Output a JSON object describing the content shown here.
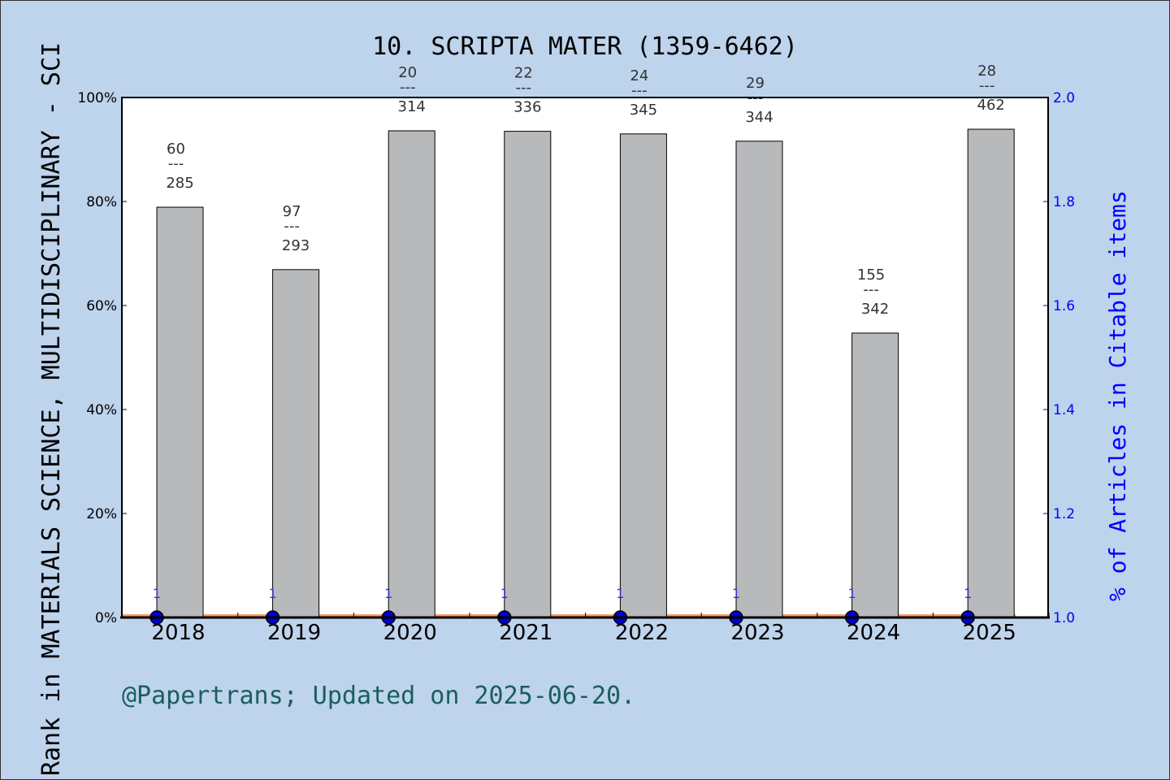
{
  "chart_data": {
    "type": "bar",
    "title": "10. SCRIPTA MATER (1359-6462)",
    "ylabel": "Rank in MATERIALS SCIENCE, MULTIDISCIPLINARY - SCI",
    "y2label": "% of Articles in Citable items",
    "categories": [
      "2018",
      "2019",
      "2020",
      "2021",
      "2022",
      "2023",
      "2024",
      "2025"
    ],
    "ranks": [
      60,
      97,
      20,
      22,
      24,
      29,
      155,
      28
    ],
    "totals": [
      285,
      293,
      314,
      336,
      345,
      344,
      342,
      462
    ],
    "values": [
      78.9,
      66.9,
      93.6,
      93.5,
      93.0,
      91.6,
      54.7,
      93.9
    ],
    "ylim": [
      0,
      100
    ],
    "yticks": [
      "0%",
      "20%",
      "40%",
      "60%",
      "80%",
      "100%"
    ],
    "y2lim": [
      1.0,
      2.0
    ],
    "y2ticks": [
      "1.0",
      "1.2",
      "1.4",
      "1.6",
      "1.8",
      "2.0"
    ],
    "secondary_series": {
      "values": [
        1,
        1,
        1,
        1,
        1,
        1,
        1,
        1
      ],
      "point_labels": [
        "1",
        "1",
        "1",
        "1",
        "1",
        "1",
        "1",
        "1"
      ],
      "color": "#0000cc"
    },
    "bottom_line_color": "#ff9966",
    "bar_color": "#b8b9bb",
    "dash_label": "---"
  },
  "footer": "@Papertrans; Updated on 2025-06-20."
}
